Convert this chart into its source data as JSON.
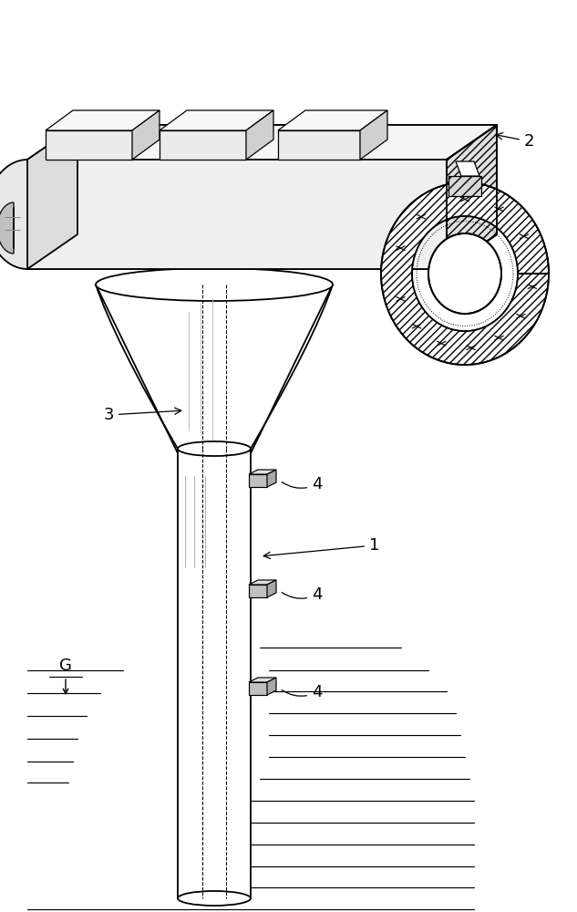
{
  "bg_color": "#ffffff",
  "lw": 1.3,
  "lw2": 0.9,
  "label_fontsize": 13,
  "figure_width": 6.33,
  "figure_height": 10.0,
  "dpi": 100
}
